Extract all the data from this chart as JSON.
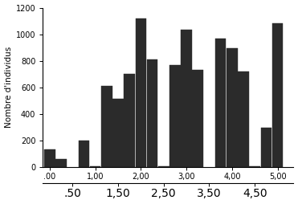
{
  "bar_positions": [
    0.0,
    0.25,
    0.75,
    1.0,
    1.25,
    1.5,
    1.75,
    2.0,
    2.25,
    2.5,
    2.75,
    3.0,
    3.25,
    3.75,
    4.0,
    4.25,
    4.5,
    4.75,
    5.0
  ],
  "bar_heights": [
    135,
    60,
    200,
    5,
    610,
    515,
    700,
    1120,
    810,
    5,
    770,
    1035,
    730,
    965,
    895,
    720,
    5,
    295,
    1080
  ],
  "bar_width": 0.24,
  "bar_color": "#2b2b2b",
  "bar_edgecolor": "#2b2b2b",
  "ylabel": "Nombre d'individus",
  "ylim": [
    0,
    1200
  ],
  "xlim": [
    -0.15,
    5.35
  ],
  "xticks_top": [
    0.0,
    1.0,
    2.0,
    3.0,
    4.0,
    5.0
  ],
  "xlabels_top": [
    ".00",
    "1,00",
    "2,00",
    "3,00",
    "4,00",
    "5,00"
  ],
  "xticks_bot": [
    0.5,
    1.5,
    2.5,
    3.5,
    4.5
  ],
  "xlabels_bot": [
    ".50",
    "1,50",
    "2,50",
    "3,50",
    "4,50"
  ],
  "yticks": [
    0,
    200,
    400,
    600,
    800,
    1000,
    1200
  ],
  "yticklabels": [
    "0",
    "200",
    "400",
    "600",
    "800",
    "1000",
    "1200"
  ],
  "tick_fontsize": 7,
  "ylabel_fontsize": 7.5,
  "background_color": "#ffffff"
}
